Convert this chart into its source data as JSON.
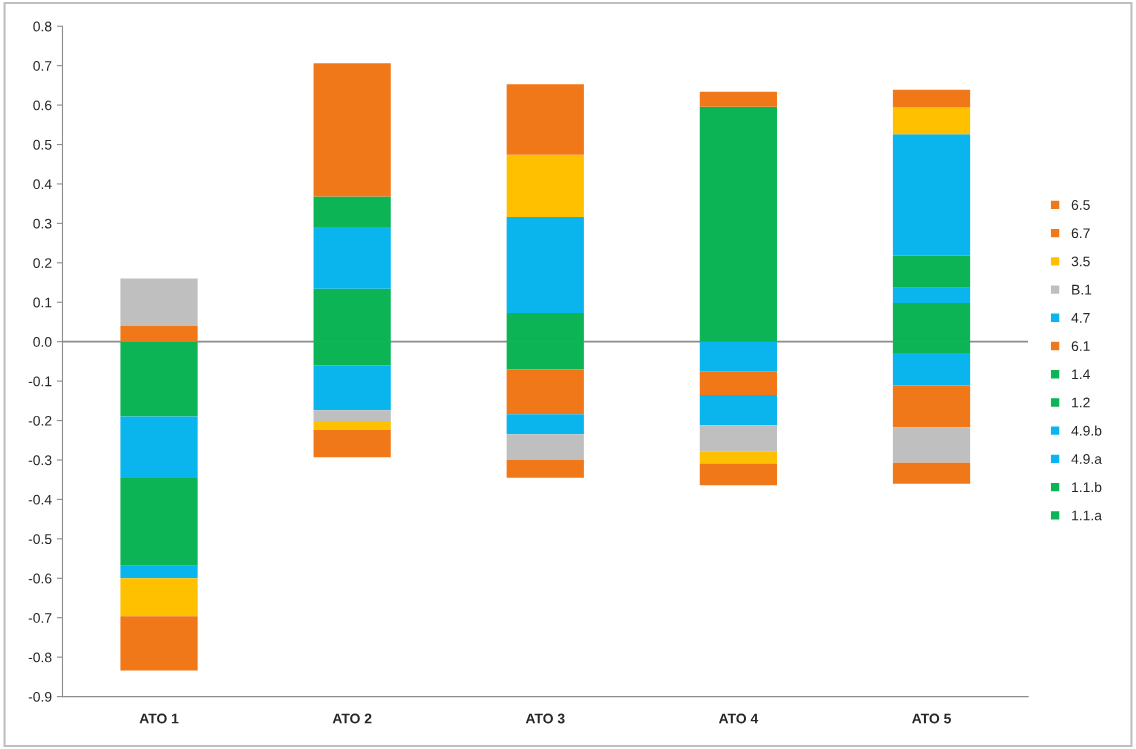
{
  "chart_data": {
    "type": "bar",
    "stacked": true,
    "categories": [
      "ATO 1",
      "ATO 2",
      "ATO 3",
      "ATO 4",
      "ATO 5"
    ],
    "series": [
      {
        "name": "1.1.a",
        "color": "#0cb456",
        "values": [
          -0.19,
          0.134,
          0.073,
          0.596,
          0.098
        ]
      },
      {
        "name": "1.1.b",
        "color": "#0cb456",
        "values": [
          null,
          -0.06,
          -0.07,
          null,
          -0.029
        ]
      },
      {
        "name": "4.9.a",
        "color": "#0ab4ec",
        "values": [
          -0.156,
          0.157,
          0.243,
          null,
          0.039
        ]
      },
      {
        "name": "4.9.b",
        "color": "#0ab4ec",
        "values": [
          null,
          -0.114,
          null,
          -0.075,
          -0.082
        ]
      },
      {
        "name": "1.2",
        "color": "#0cb456",
        "values": [
          -0.222,
          null,
          null,
          null,
          0.081
        ]
      },
      {
        "name": "1.4",
        "color": "#0cb456",
        "values": [
          null,
          0.077,
          null,
          null,
          null
        ]
      },
      {
        "name": "6.1",
        "color": "#f07818",
        "values": [
          0.04,
          null,
          -0.114,
          -0.06,
          -0.106
        ]
      },
      {
        "name": "4.7",
        "color": "#0ab4ec",
        "values": [
          -0.032,
          null,
          -0.051,
          -0.077,
          0.308
        ]
      },
      {
        "name": "B.1",
        "color": "#bfbfbf",
        "values": [
          0.12,
          -0.027,
          -0.065,
          -0.067,
          -0.09
        ]
      },
      {
        "name": "3.5",
        "color": "#ffc000",
        "values": [
          -0.096,
          -0.023,
          0.158,
          -0.03,
          0.068
        ]
      },
      {
        "name": "6.7",
        "color": "#f07818",
        "values": [
          -0.138,
          -0.069,
          -0.045,
          -0.055,
          -0.053
        ]
      },
      {
        "name": "6.5",
        "color": "#f07818",
        "values": [
          null,
          0.338,
          0.179,
          0.038,
          0.045
        ]
      }
    ],
    "ylim": [
      -0.9,
      0.8
    ],
    "yticks": [
      -0.9,
      -0.8,
      -0.7,
      -0.6,
      -0.5,
      -0.4,
      -0.3,
      -0.2,
      -0.1,
      {
        "value": 0,
        "label": "0.0"
      },
      0.1,
      0.2,
      0.3,
      0.4,
      0.5,
      0.6,
      0.7,
      0.8
    ],
    "ref_lines": [
      {
        "axis": "y",
        "value": 0,
        "color": "#8c8c8c"
      }
    ],
    "grid": false,
    "legend": "right"
  }
}
